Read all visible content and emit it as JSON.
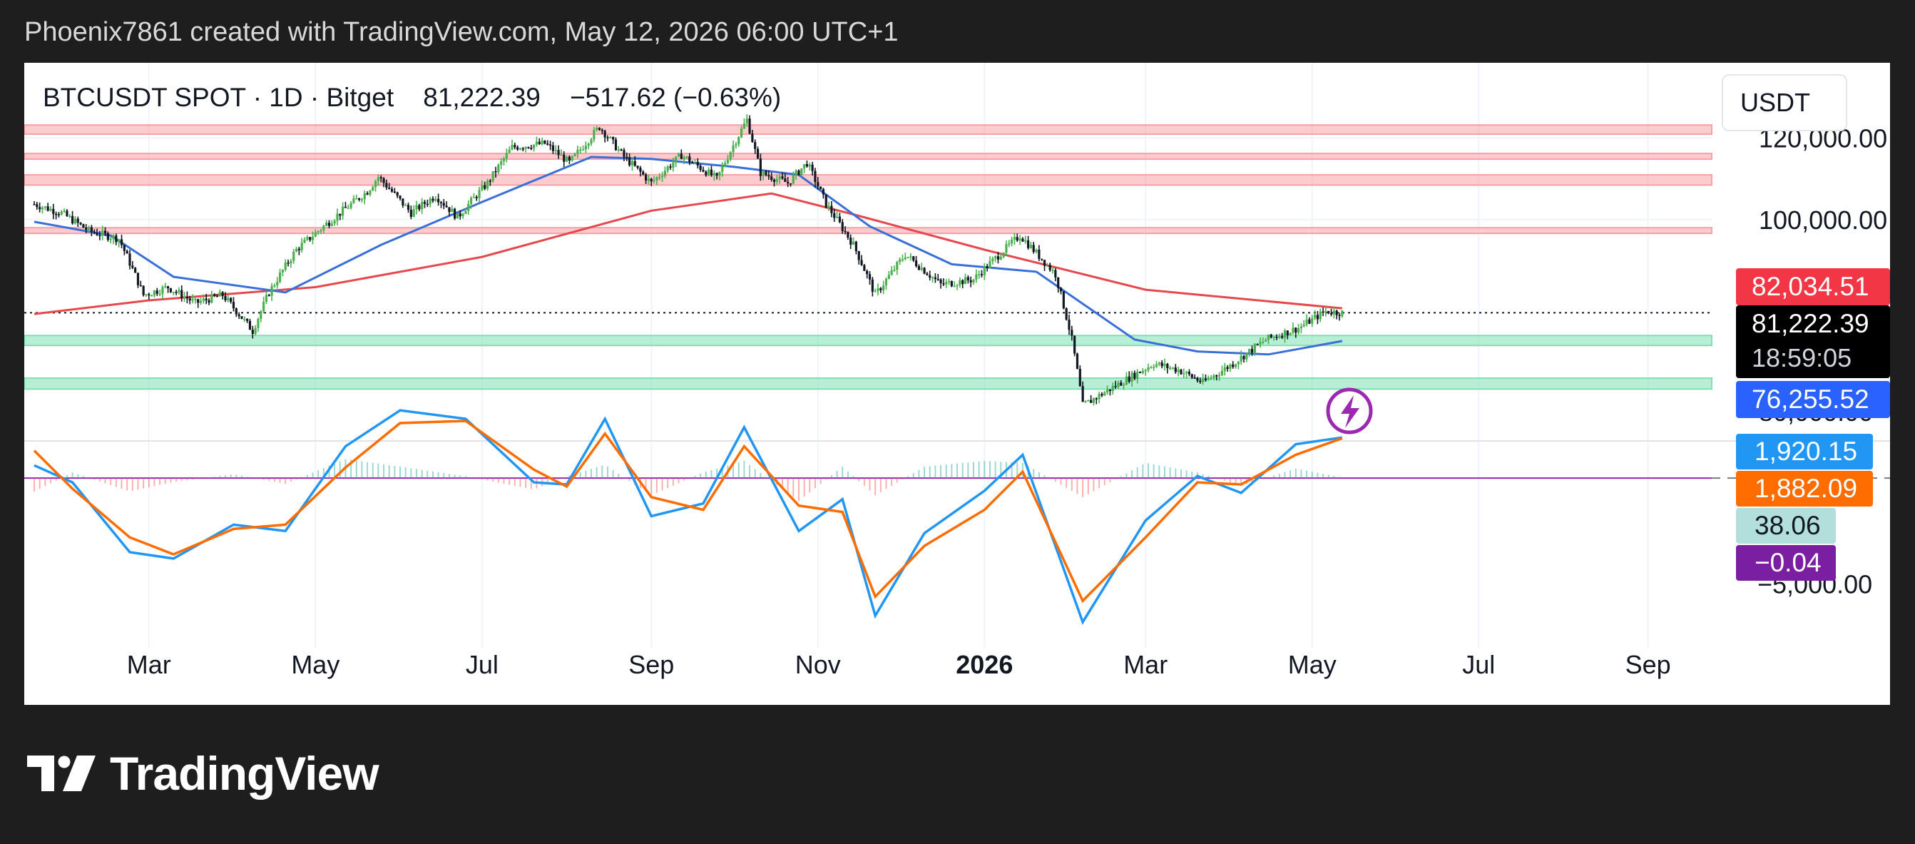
{
  "header": {
    "text": "Phoenix7861 created with TradingView.com, May 12, 2026 06:00 UTC+1"
  },
  "legend": {
    "symbol": "BTCUSDT SPOT",
    "interval": "1D",
    "exchange": "Bitget",
    "price": "81,222.39",
    "change": "−517.62 (−0.63%)"
  },
  "currency": "USDT",
  "footer": {
    "brand": "TradingView"
  },
  "colors": {
    "up": "#4caf50",
    "down": "#131722",
    "ma_red": "#e5484d",
    "ma_blue": "#3a6fd8",
    "macd_line": "#2196f3",
    "signal_line": "#ff6d00",
    "resistance_zone": "#f7a1a6",
    "support_zone": "#7ee0b4"
  },
  "chart_data": [
    {
      "type": "candlestick",
      "y_scale": "log",
      "ylim": [
        64000,
        130000
      ],
      "y_ticks": [
        "120,000.00",
        "100,000.00"
      ],
      "y_tick_values": [
        120000,
        100000
      ],
      "partially_hidden_tick": "80,000.00",
      "x_ticks": [
        "Mar",
        "May",
        "Jul",
        "Sep",
        "Nov",
        "2026",
        "Mar",
        "May",
        "Jul",
        "Sep"
      ],
      "x_tick_dates": [
        "2025-03-01",
        "2025-05-01",
        "2025-07-01",
        "2025-09-01",
        "2025-11-01",
        "2026-01-01",
        "2026-03-01",
        "2026-05-01",
        "2026-07-01",
        "2026-09-01"
      ],
      "x_range": [
        "2025-01-18",
        "2026-09-28"
      ],
      "ohlc_close_path": [
        [
          "2025-01-18",
          103500
        ],
        [
          "2025-01-28",
          101500
        ],
        [
          "2025-02-07",
          97500
        ],
        [
          "2025-02-18",
          95800
        ],
        [
          "2025-02-27",
          84500
        ],
        [
          "2025-03-08",
          86000
        ],
        [
          "2025-03-18",
          83000
        ],
        [
          "2025-03-28",
          84500
        ],
        [
          "2025-04-08",
          78000
        ],
        [
          "2025-04-14",
          85000
        ],
        [
          "2025-04-24",
          93500
        ],
        [
          "2025-05-08",
          100500
        ],
        [
          "2025-05-20",
          106500
        ],
        [
          "2025-05-24",
          110000
        ],
        [
          "2025-06-05",
          101500
        ],
        [
          "2025-06-14",
          105500
        ],
        [
          "2025-06-22",
          100500
        ],
        [
          "2025-07-03",
          108500
        ],
        [
          "2025-07-12",
          117500
        ],
        [
          "2025-07-24",
          118500
        ],
        [
          "2025-08-02",
          113500
        ],
        [
          "2025-08-13",
          123000
        ],
        [
          "2025-08-22",
          115000
        ],
        [
          "2025-09-01",
          108500
        ],
        [
          "2025-09-12",
          115500
        ],
        [
          "2025-09-25",
          109500
        ],
        [
          "2025-10-06",
          125000
        ],
        [
          "2025-10-11",
          111000
        ],
        [
          "2025-10-21",
          108500
        ],
        [
          "2025-10-28",
          113500
        ],
        [
          "2025-11-04",
          103500
        ],
        [
          "2025-11-14",
          94500
        ],
        [
          "2025-11-22",
          84500
        ],
        [
          "2025-12-03",
          92500
        ],
        [
          "2025-12-16",
          86500
        ],
        [
          "2025-12-28",
          87500
        ],
        [
          "2026-01-14",
          96500
        ],
        [
          "2026-01-27",
          88500
        ],
        [
          "2026-02-02",
          76500
        ],
        [
          "2026-02-06",
          66000
        ],
        [
          "2026-02-16",
          68500
        ],
        [
          "2026-03-04",
          72500
        ],
        [
          "2026-03-13",
          71500
        ],
        [
          "2026-03-22",
          69500
        ],
        [
          "2026-04-02",
          72500
        ],
        [
          "2026-04-14",
          76500
        ],
        [
          "2026-04-26",
          78500
        ],
        [
          "2026-05-06",
          81500
        ],
        [
          "2026-05-12",
          81222
        ]
      ],
      "series": [
        {
          "name": "MA (red)",
          "values": [
            [
              "2025-01-18",
              81000
            ],
            [
              "2025-03-01",
              83500
            ],
            [
              "2025-05-01",
              86000
            ],
            [
              "2025-07-01",
              92000
            ],
            [
              "2025-09-01",
              102000
            ],
            [
              "2025-10-15",
              106000
            ],
            [
              "2025-11-15",
              101000
            ],
            [
              "2026-01-01",
              93500
            ],
            [
              "2026-03-01",
              85500
            ],
            [
              "2026-05-12",
              82034
            ]
          ]
        },
        {
          "name": "MA (blue)",
          "values": [
            [
              "2025-01-18",
              99500
            ],
            [
              "2025-02-15",
              96500
            ],
            [
              "2025-03-10",
              88000
            ],
            [
              "2025-04-20",
              85000
            ],
            [
              "2025-05-25",
              94500
            ],
            [
              "2025-07-01",
              104000
            ],
            [
              "2025-08-10",
              115000
            ],
            [
              "2025-09-01",
              114500
            ],
            [
              "2025-10-01",
              112500
            ],
            [
              "2025-10-25",
              110500
            ],
            [
              "2025-11-20",
              98500
            ],
            [
              "2025-12-20",
              90500
            ],
            [
              "2026-01-20",
              89000
            ],
            [
              "2026-02-25",
              76500
            ],
            [
              "2026-03-20",
              74500
            ],
            [
              "2026-04-15",
              74000
            ],
            [
              "2026-05-12",
              76255
            ]
          ]
        }
      ],
      "horizontal_zones": [
        {
          "kind": "resistance",
          "low": 121000,
          "high": 123500
        },
        {
          "kind": "resistance",
          "low": 114800,
          "high": 115900
        },
        {
          "kind": "resistance",
          "low": 108000,
          "high": 110500
        },
        {
          "kind": "resistance",
          "low": 97200,
          "high": 98200
        },
        {
          "kind": "support",
          "low": 75500,
          "high": 77200
        },
        {
          "kind": "support",
          "low": 68500,
          "high": 70200
        }
      ],
      "last_price_line": 81222.39,
      "price_labels": [
        {
          "text": "82,034.51",
          "value": 82034.51,
          "color": "#f23645"
        },
        {
          "text": "81,222.39",
          "sub": "18:59:05",
          "value": 81222.39,
          "color": "#000000"
        },
        {
          "text": "76,255.52",
          "value": 76255.52,
          "color": "#2962ff"
        }
      ]
    },
    {
      "type": "macd",
      "ylim": [
        -6500,
        2600
      ],
      "y_ticks": [
        "−5,000.00"
      ],
      "y_tick_values": [
        -5000
      ],
      "macd_line": [
        [
          "2025-01-18",
          600
        ],
        [
          "2025-02-01",
          -200
        ],
        [
          "2025-02-22",
          -3500
        ],
        [
          "2025-03-10",
          -3800
        ],
        [
          "2025-04-01",
          -2200
        ],
        [
          "2025-04-20",
          -2500
        ],
        [
          "2025-05-12",
          1500
        ],
        [
          "2025-06-01",
          3200
        ],
        [
          "2025-06-25",
          2800
        ],
        [
          "2025-07-20",
          -200
        ],
        [
          "2025-08-01",
          -300
        ],
        [
          "2025-08-15",
          2800
        ],
        [
          "2025-09-01",
          -1800
        ],
        [
          "2025-09-20",
          -1200
        ],
        [
          "2025-10-05",
          2400
        ],
        [
          "2025-10-25",
          -2500
        ],
        [
          "2025-11-10",
          -1000
        ],
        [
          "2025-11-22",
          -6500
        ],
        [
          "2025-12-10",
          -2600
        ],
        [
          "2026-01-01",
          -600
        ],
        [
          "2026-01-15",
          1100
        ],
        [
          "2026-02-06",
          -6800
        ],
        [
          "2026-03-01",
          -2000
        ],
        [
          "2026-03-20",
          100
        ],
        [
          "2026-04-05",
          -700
        ],
        [
          "2026-04-25",
          1600
        ],
        [
          "2026-05-12",
          1920
        ]
      ],
      "signal_line": [
        [
          "2025-01-18",
          1300
        ],
        [
          "2025-02-01",
          -500
        ],
        [
          "2025-02-22",
          -2800
        ],
        [
          "2025-03-10",
          -3600
        ],
        [
          "2025-04-01",
          -2400
        ],
        [
          "2025-04-20",
          -2200
        ],
        [
          "2025-05-12",
          500
        ],
        [
          "2025-06-01",
          2600
        ],
        [
          "2025-06-25",
          2700
        ],
        [
          "2025-07-20",
          400
        ],
        [
          "2025-08-01",
          -400
        ],
        [
          "2025-08-15",
          2100
        ],
        [
          "2025-09-01",
          -900
        ],
        [
          "2025-09-20",
          -1500
        ],
        [
          "2025-10-05",
          1500
        ],
        [
          "2025-10-25",
          -1300
        ],
        [
          "2025-11-10",
          -1600
        ],
        [
          "2025-11-22",
          -5600
        ],
        [
          "2025-12-10",
          -3200
        ],
        [
          "2026-01-01",
          -1500
        ],
        [
          "2026-01-15",
          300
        ],
        [
          "2026-02-06",
          -5800
        ],
        [
          "2026-03-01",
          -2800
        ],
        [
          "2026-03-20",
          -200
        ],
        [
          "2026-04-05",
          -300
        ],
        [
          "2026-04-25",
          1100
        ],
        [
          "2026-05-12",
          1882
        ]
      ],
      "zero_line": 0,
      "value_labels": [
        {
          "text": "1,920.15",
          "color": "#2196f3"
        },
        {
          "text": "1,882.09",
          "color": "#ff6d00"
        },
        {
          "text": "38.06",
          "color": "#b2dfdb"
        },
        {
          "text": "−0.04",
          "color": "#7b1fa2"
        }
      ]
    }
  ]
}
